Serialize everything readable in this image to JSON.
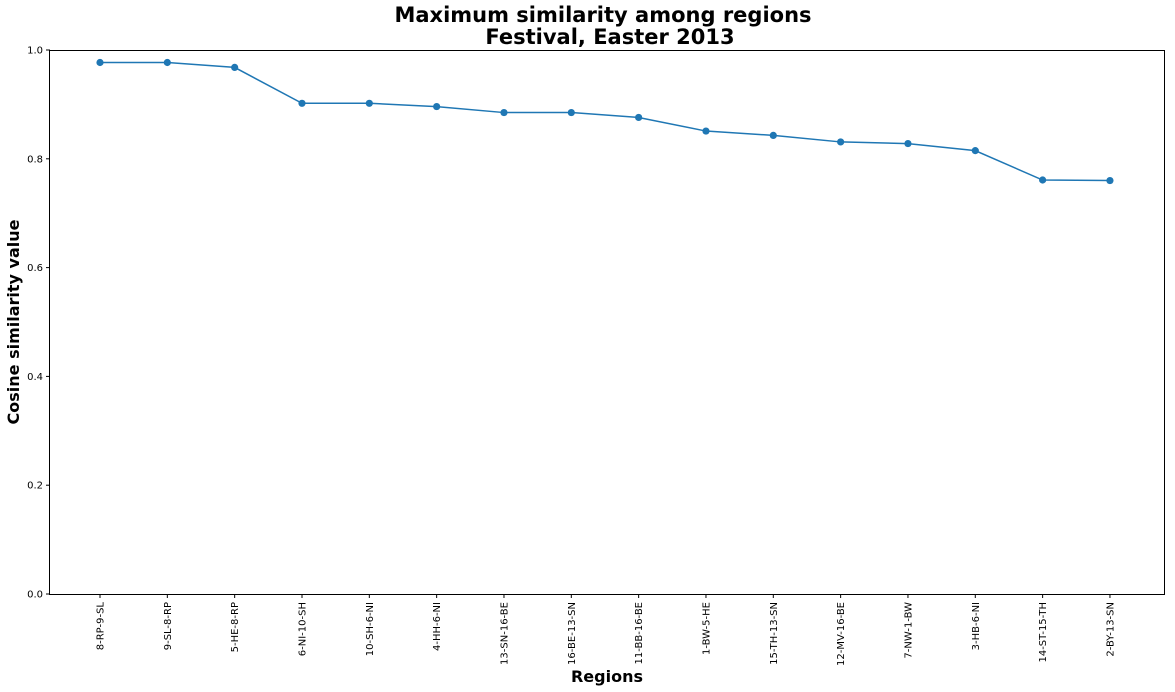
{
  "chart_data": {
    "type": "line",
    "title": [
      "Maximum similarity among regions",
      "Festival, Easter 2013"
    ],
    "xlabel": "Regions",
    "ylabel": "Cosine similarity value",
    "categories": [
      "8-RP-9-SL",
      "9-SL-8-RP",
      "5-HE-8-RP",
      "6-NI-10-SH",
      "10-SH-6-NI",
      "4-HH-6-NI",
      "13-SN-16-BE",
      "16-BE-13-SN",
      "11-BB-16-BE",
      "1-BW-5-HE",
      "15-TH-13-SN",
      "12-MV-16-BE",
      "7-NW-1-BW",
      "3-HB-6-NI",
      "14-ST-15-TH",
      "2-BY-13-SN"
    ],
    "values": [
      0.977,
      0.977,
      0.968,
      0.902,
      0.902,
      0.896,
      0.885,
      0.885,
      0.876,
      0.851,
      0.843,
      0.831,
      0.828,
      0.815,
      0.761,
      0.76
    ],
    "ylim": [
      0.0,
      1.0
    ],
    "yticks": [
      "0.0",
      "0.2",
      "0.4",
      "0.6",
      "0.8",
      "1.0"
    ],
    "grid": false,
    "color": "#1f77b4"
  }
}
